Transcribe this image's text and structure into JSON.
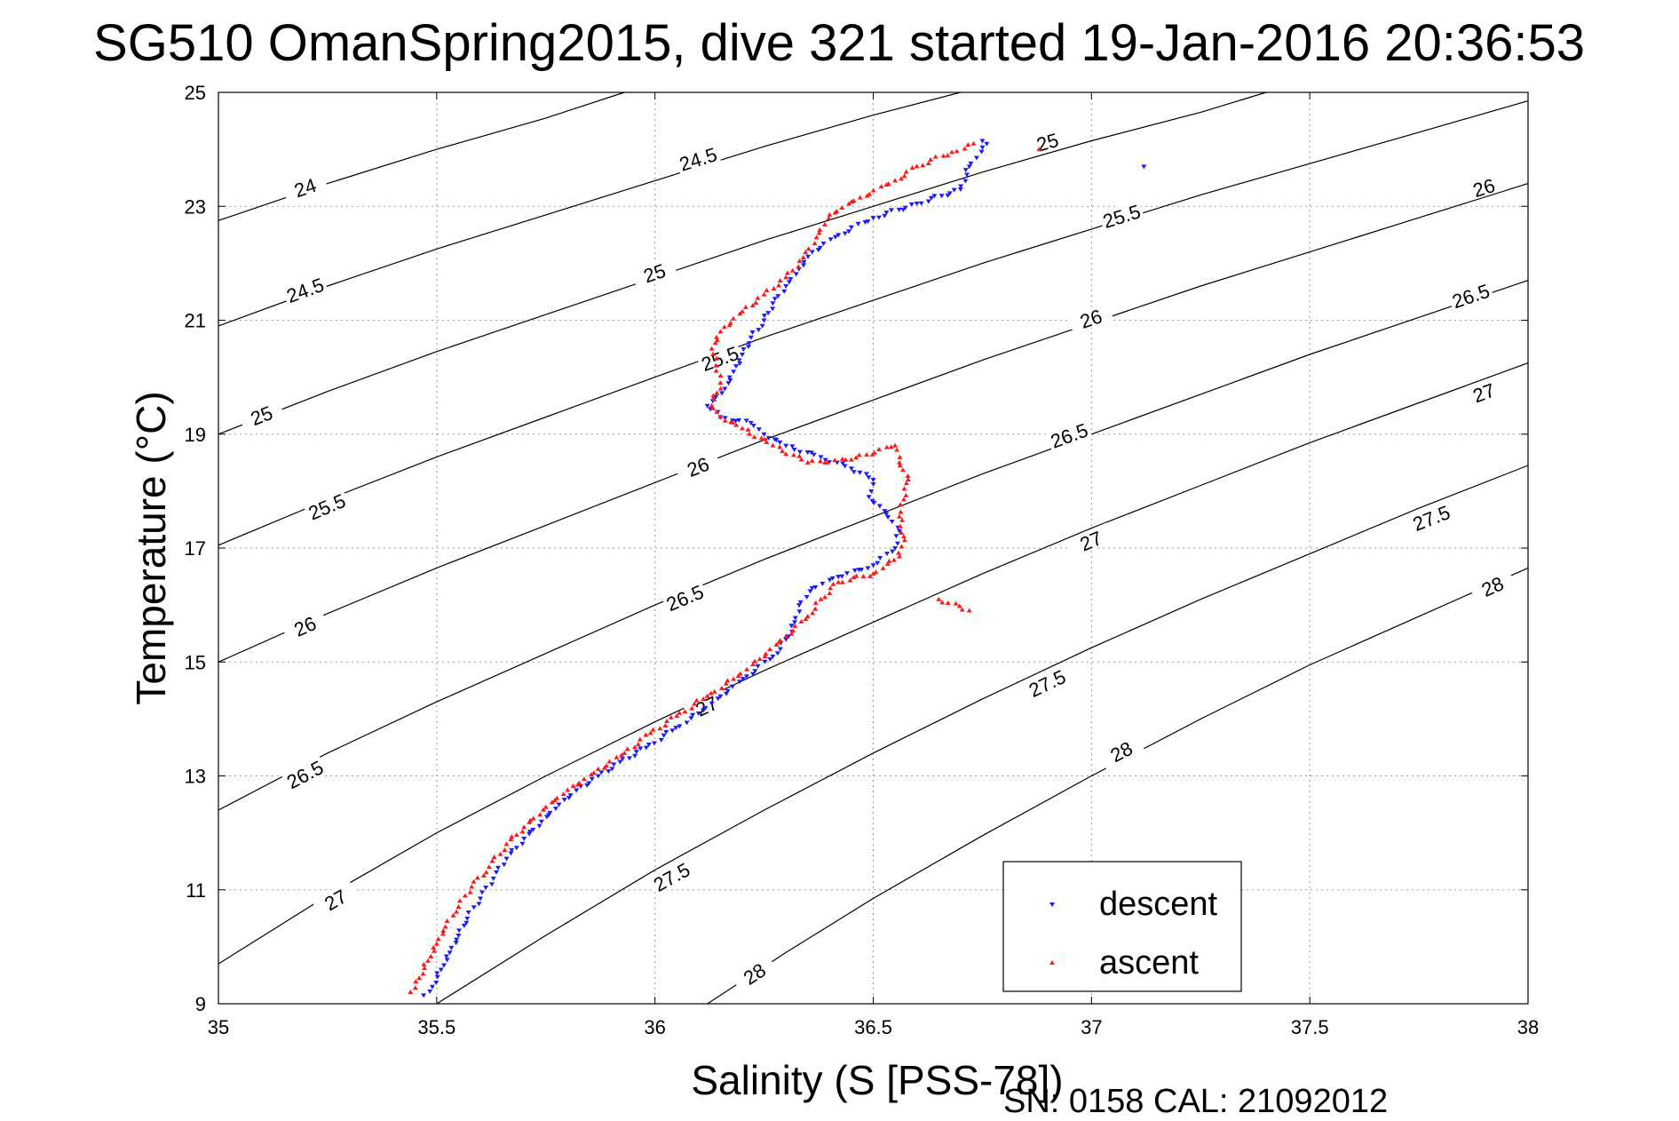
{
  "colors": {
    "descent": "#1a1aff",
    "ascent": "#ff1a1a",
    "axis": "#000000",
    "grid": "#9a9a9a",
    "contour": "#000000"
  },
  "chart_data": {
    "type": "scatter",
    "title": "SG510 OmanSpring2015, dive 321 started 19-Jan-2016 20:36:53",
    "xlabel": "Salinity (S [PSS-78])",
    "ylabel": "Temperature (°C)",
    "xlim": [
      35,
      38
    ],
    "ylim": [
      9,
      25
    ],
    "xticks": [
      35,
      35.5,
      36,
      36.5,
      37,
      37.5,
      38
    ],
    "xtick_labels": [
      "35",
      "35.5",
      "36",
      "36.5",
      "37",
      "37.5",
      "38"
    ],
    "yticks": [
      9,
      11,
      13,
      15,
      17,
      19,
      21,
      23,
      25
    ],
    "ytick_labels": [
      "9",
      "11",
      "13",
      "15",
      "17",
      "19",
      "21",
      "23",
      "25"
    ],
    "grid": true,
    "legend_position": "bottom-right",
    "footer": "SN: 0158  CAL: 21092012",
    "contours": [
      {
        "sigma": "24",
        "points": [
          [
            35,
            22.75
          ],
          [
            35.25,
            23.4
          ],
          [
            35.5,
            24.0
          ],
          [
            35.75,
            24.55
          ],
          [
            35.93,
            25.0
          ]
        ],
        "labels": [
          {
            "x": 35.2,
            "y": 23.3
          }
        ]
      },
      {
        "sigma": "24.5",
        "points": [
          [
            35,
            20.9
          ],
          [
            35.25,
            21.6
          ],
          [
            35.5,
            22.25
          ],
          [
            35.75,
            22.85
          ],
          [
            36,
            23.45
          ],
          [
            36.25,
            24.05
          ],
          [
            36.5,
            24.6
          ],
          [
            36.7,
            25.0
          ]
        ],
        "labels": [
          {
            "x": 35.2,
            "y": 21.5
          },
          {
            "x": 36.1,
            "y": 23.8
          }
        ]
      },
      {
        "sigma": "25",
        "points": [
          [
            35,
            19.0
          ],
          [
            35.25,
            19.75
          ],
          [
            35.5,
            20.45
          ],
          [
            35.75,
            21.1
          ],
          [
            36,
            21.75
          ],
          [
            36.25,
            22.4
          ],
          [
            36.5,
            23.0
          ],
          [
            36.75,
            23.6
          ],
          [
            37,
            24.15
          ],
          [
            37.25,
            24.65
          ],
          [
            37.4,
            25.0
          ]
        ],
        "labels": [
          {
            "x": 35.1,
            "y": 19.3
          },
          {
            "x": 36.0,
            "y": 21.8
          },
          {
            "x": 36.9,
            "y": 24.1
          }
        ]
      },
      {
        "sigma": "25.5",
        "points": [
          [
            35,
            17.05
          ],
          [
            35.25,
            17.85
          ],
          [
            35.5,
            18.6
          ],
          [
            35.75,
            19.3
          ],
          [
            36,
            20.0
          ],
          [
            36.25,
            20.7
          ],
          [
            36.5,
            21.35
          ],
          [
            36.75,
            22.0
          ],
          [
            37,
            22.6
          ],
          [
            37.25,
            23.2
          ],
          [
            37.5,
            23.75
          ],
          [
            37.75,
            24.3
          ],
          [
            38,
            24.85
          ]
        ],
        "labels": [
          {
            "x": 35.25,
            "y": 17.7
          },
          {
            "x": 36.15,
            "y": 20.3
          },
          {
            "x": 37.07,
            "y": 22.8
          }
        ]
      },
      {
        "sigma": "26",
        "points": [
          [
            35,
            15.0
          ],
          [
            35.25,
            15.85
          ],
          [
            35.5,
            16.65
          ],
          [
            35.75,
            17.4
          ],
          [
            36,
            18.15
          ],
          [
            36.25,
            18.9
          ],
          [
            36.5,
            19.6
          ],
          [
            36.75,
            20.3
          ],
          [
            37,
            20.95
          ],
          [
            37.25,
            21.6
          ],
          [
            37.5,
            22.2
          ],
          [
            37.75,
            22.8
          ],
          [
            38,
            23.4
          ]
        ],
        "labels": [
          {
            "x": 35.2,
            "y": 15.6
          },
          {
            "x": 36.1,
            "y": 18.4
          },
          {
            "x": 37.0,
            "y": 21.0
          },
          {
            "x": 37.9,
            "y": 23.3
          }
        ]
      },
      {
        "sigma": "26.5",
        "points": [
          [
            35,
            12.4
          ],
          [
            35.25,
            13.4
          ],
          [
            35.5,
            14.3
          ],
          [
            35.75,
            15.15
          ],
          [
            36,
            16.0
          ],
          [
            36.25,
            16.8
          ],
          [
            36.5,
            17.55
          ],
          [
            36.75,
            18.3
          ],
          [
            37,
            19.0
          ],
          [
            37.25,
            19.7
          ],
          [
            37.5,
            20.4
          ],
          [
            37.75,
            21.05
          ],
          [
            38,
            21.7
          ]
        ],
        "labels": [
          {
            "x": 35.2,
            "y": 13.0
          },
          {
            "x": 36.07,
            "y": 16.1
          },
          {
            "x": 36.95,
            "y": 18.95
          },
          {
            "x": 37.87,
            "y": 21.4
          }
        ]
      },
      {
        "sigma": "27",
        "points": [
          [
            35,
            9.7
          ],
          [
            35.25,
            10.9
          ],
          [
            35.5,
            12.0
          ],
          [
            35.75,
            13.0
          ],
          [
            36,
            13.95
          ],
          [
            36.25,
            14.85
          ],
          [
            36.5,
            15.7
          ],
          [
            36.75,
            16.55
          ],
          [
            37,
            17.35
          ],
          [
            37.25,
            18.1
          ],
          [
            37.5,
            18.85
          ],
          [
            37.75,
            19.55
          ],
          [
            38,
            20.25
          ]
        ],
        "labels": [
          {
            "x": 35.27,
            "y": 10.8
          },
          {
            "x": 36.12,
            "y": 14.2
          },
          {
            "x": 37.0,
            "y": 17.1
          },
          {
            "x": 37.9,
            "y": 19.7
          }
        ]
      },
      {
        "sigma": "27.5",
        "points": [
          [
            35.5,
            9.0
          ],
          [
            35.75,
            10.2
          ],
          [
            36,
            11.35
          ],
          [
            36.25,
            12.4
          ],
          [
            36.5,
            13.4
          ],
          [
            36.75,
            14.35
          ],
          [
            37,
            15.25
          ],
          [
            37.25,
            16.1
          ],
          [
            37.5,
            16.9
          ],
          [
            37.75,
            17.7
          ],
          [
            38,
            18.45
          ]
        ],
        "labels": [
          {
            "x": 36.04,
            "y": 11.2
          },
          {
            "x": 36.9,
            "y": 14.6
          },
          {
            "x": 37.78,
            "y": 17.5
          }
        ]
      },
      {
        "sigma": "28",
        "points": [
          [
            36.12,
            9.0
          ],
          [
            36.3,
            9.9
          ],
          [
            36.5,
            10.85
          ],
          [
            36.75,
            11.95
          ],
          [
            37,
            13.0
          ],
          [
            37.25,
            14.0
          ],
          [
            37.5,
            14.95
          ],
          [
            37.75,
            15.8
          ],
          [
            38,
            16.65
          ]
        ],
        "labels": [
          {
            "x": 36.23,
            "y": 9.5
          },
          {
            "x": 37.07,
            "y": 13.4
          },
          {
            "x": 37.92,
            "y": 16.3
          }
        ]
      }
    ],
    "series": [
      {
        "name": "descent",
        "points": [
          [
            35.47,
            9.15
          ],
          [
            35.49,
            9.3
          ],
          [
            35.51,
            9.6
          ],
          [
            35.53,
            9.9
          ],
          [
            35.55,
            10.2
          ],
          [
            35.57,
            10.5
          ],
          [
            35.6,
            10.85
          ],
          [
            35.63,
            11.2
          ],
          [
            35.66,
            11.55
          ],
          [
            35.7,
            11.9
          ],
          [
            35.74,
            12.2
          ],
          [
            35.78,
            12.5
          ],
          [
            35.82,
            12.75
          ],
          [
            35.87,
            13.0
          ],
          [
            35.92,
            13.25
          ],
          [
            35.98,
            13.5
          ],
          [
            36.04,
            13.8
          ],
          [
            36.1,
            14.1
          ],
          [
            36.15,
            14.4
          ],
          [
            36.21,
            14.75
          ],
          [
            36.27,
            15.1
          ],
          [
            36.3,
            15.4
          ],
          [
            36.32,
            15.7
          ],
          [
            36.33,
            16.0
          ],
          [
            36.36,
            16.3
          ],
          [
            36.42,
            16.5
          ],
          [
            36.5,
            16.7
          ],
          [
            36.55,
            17.0
          ],
          [
            36.56,
            17.3
          ],
          [
            36.53,
            17.6
          ],
          [
            36.49,
            17.9
          ],
          [
            36.5,
            18.2
          ],
          [
            36.45,
            18.4
          ],
          [
            36.38,
            18.6
          ],
          [
            36.3,
            18.8
          ],
          [
            36.25,
            19.0
          ],
          [
            36.22,
            19.2
          ],
          [
            36.15,
            19.3
          ],
          [
            36.12,
            19.5
          ],
          [
            36.16,
            19.8
          ],
          [
            36.18,
            20.1
          ],
          [
            36.2,
            20.4
          ],
          [
            36.22,
            20.7
          ],
          [
            36.25,
            21.0
          ],
          [
            36.27,
            21.3
          ],
          [
            36.3,
            21.6
          ],
          [
            36.33,
            21.9
          ],
          [
            36.36,
            22.2
          ],
          [
            36.42,
            22.5
          ],
          [
            36.5,
            22.8
          ],
          [
            36.6,
            23.05
          ],
          [
            36.7,
            23.3
          ],
          [
            36.72,
            23.7
          ],
          [
            36.76,
            24.1
          ],
          [
            36.75,
            24.15
          ],
          [
            37.12,
            23.7
          ]
        ]
      },
      {
        "name": "ascent",
        "points": [
          [
            35.44,
            9.2
          ],
          [
            35.46,
            9.45
          ],
          [
            35.48,
            9.75
          ],
          [
            35.5,
            10.05
          ],
          [
            35.52,
            10.35
          ],
          [
            35.55,
            10.7
          ],
          [
            35.58,
            11.05
          ],
          [
            35.62,
            11.4
          ],
          [
            35.66,
            11.8
          ],
          [
            35.7,
            12.1
          ],
          [
            35.75,
            12.45
          ],
          [
            35.8,
            12.75
          ],
          [
            35.86,
            13.05
          ],
          [
            35.93,
            13.4
          ],
          [
            35.99,
            13.75
          ],
          [
            36.05,
            14.05
          ],
          [
            36.12,
            14.4
          ],
          [
            36.18,
            14.7
          ],
          [
            36.24,
            15.05
          ],
          [
            36.3,
            15.45
          ],
          [
            36.35,
            15.8
          ],
          [
            36.38,
            16.1
          ],
          [
            36.42,
            16.4
          ],
          [
            36.5,
            16.55
          ],
          [
            36.56,
            16.85
          ],
          [
            36.57,
            17.2
          ],
          [
            36.56,
            17.55
          ],
          [
            36.57,
            17.85
          ],
          [
            36.58,
            18.2
          ],
          [
            36.56,
            18.5
          ],
          [
            36.55,
            18.8
          ],
          [
            36.45,
            18.55
          ],
          [
            36.35,
            18.5
          ],
          [
            36.27,
            18.8
          ],
          [
            36.2,
            19.1
          ],
          [
            36.15,
            19.3
          ],
          [
            36.13,
            19.5
          ],
          [
            36.15,
            19.9
          ],
          [
            36.14,
            20.2
          ],
          [
            36.13,
            20.5
          ],
          [
            36.15,
            20.8
          ],
          [
            36.2,
            21.15
          ],
          [
            36.25,
            21.45
          ],
          [
            36.3,
            21.75
          ],
          [
            36.34,
            22.1
          ],
          [
            36.37,
            22.45
          ],
          [
            36.4,
            22.85
          ],
          [
            36.47,
            23.15
          ],
          [
            36.55,
            23.45
          ],
          [
            36.6,
            23.7
          ],
          [
            36.68,
            23.95
          ],
          [
            36.73,
            24.1
          ],
          [
            36.88,
            24.0
          ],
          [
            36.65,
            16.1
          ],
          [
            36.72,
            15.9
          ]
        ]
      }
    ]
  }
}
